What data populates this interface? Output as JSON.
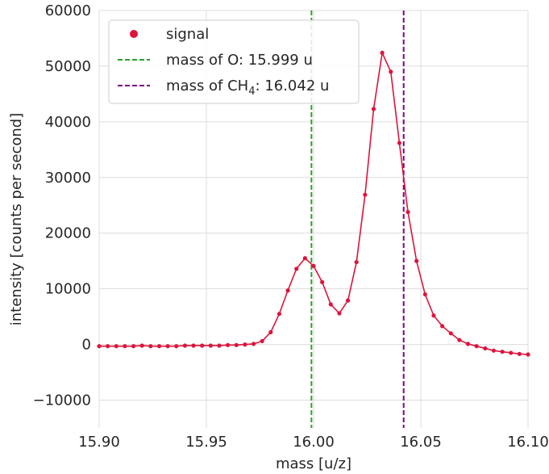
{
  "chart_data": {
    "type": "line",
    "title": "",
    "xlabel": "mass [u/z]",
    "ylabel": "intensity [counts per second]",
    "xlim": [
      15.9,
      16.1
    ],
    "ylim": [
      -15000,
      60000
    ],
    "xticks": [
      15.9,
      15.95,
      16.0,
      16.05,
      16.1
    ],
    "xtick_labels": [
      "15.90",
      "15.95",
      "16.00",
      "16.05",
      "16.10"
    ],
    "yticks": [
      -10000,
      0,
      10000,
      20000,
      30000,
      40000,
      50000,
      60000
    ],
    "ytick_labels": [
      "−10000",
      "0",
      "10000",
      "20000",
      "30000",
      "40000",
      "50000",
      "60000"
    ],
    "grid": true,
    "legend_position": "top-left",
    "series": [
      {
        "name": "signal",
        "color": "#dc143c",
        "marker": "circle",
        "x": [
          15.9,
          15.904,
          15.908,
          15.912,
          15.916,
          15.92,
          15.924,
          15.928,
          15.932,
          15.936,
          15.94,
          15.944,
          15.948,
          15.952,
          15.956,
          15.96,
          15.964,
          15.968,
          15.972,
          15.976,
          15.98,
          15.984,
          15.988,
          15.992,
          15.996,
          16.0,
          16.004,
          16.008,
          16.012,
          16.016,
          16.02,
          16.024,
          16.028,
          16.032,
          16.036,
          16.04,
          16.044,
          16.048,
          16.052,
          16.056,
          16.06,
          16.064,
          16.068,
          16.072,
          16.076,
          16.08,
          16.084,
          16.088,
          16.092,
          16.096,
          16.1
        ],
        "y": [
          -300,
          -300,
          -300,
          -300,
          -300,
          -200,
          -300,
          -300,
          -300,
          -300,
          -200,
          -200,
          -200,
          -200,
          -200,
          -100,
          -100,
          0,
          100,
          600,
          2200,
          5500,
          9700,
          13600,
          15500,
          14100,
          11200,
          7200,
          5600,
          7900,
          14800,
          26900,
          42300,
          52400,
          49000,
          36200,
          23800,
          15000,
          9000,
          5200,
          3300,
          2000,
          800,
          100,
          -300,
          -700,
          -1100,
          -1300,
          -1500,
          -1700,
          -1800
        ]
      }
    ],
    "vlines": [
      {
        "name": "mass of O: 15.999 u",
        "label_main": "mass of O: 15.999 u",
        "x": 15.999,
        "color": "#2ca02c",
        "style": "dashed"
      },
      {
        "name": "mass of CH4: 16.042 u",
        "label_main": "mass of CH",
        "label_sub": "4",
        "label_tail": ": 16.042 u",
        "x": 16.042,
        "color": "#800080",
        "style": "dashed"
      }
    ]
  }
}
